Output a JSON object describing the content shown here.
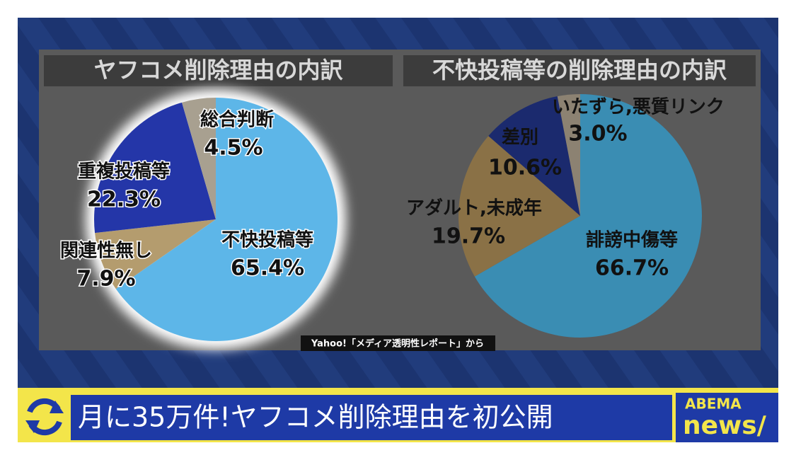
{
  "chart_data": [
    {
      "type": "pie",
      "title": "ヤフコメ削除理由の内訳",
      "categories": [
        "不快投稿等",
        "関連性無し",
        "重複投稿等",
        "総合判断"
      ],
      "values": [
        65.4,
        7.9,
        22.3,
        4.5
      ],
      "value_labels": [
        "65.4%",
        "7.9%",
        "22.3%",
        "4.5%"
      ],
      "colors": [
        "#5db6e8",
        "#b49c6e",
        "#2436a8",
        "#a8a090"
      ]
    },
    {
      "type": "pie",
      "title": "不快投稿等の削除理由の内訳",
      "categories": [
        "誹謗中傷等",
        "アダルト,未成年",
        "差別",
        "いたずら,悪質リンク"
      ],
      "values": [
        66.7,
        19.7,
        10.6,
        3.0
      ],
      "value_labels": [
        "66.7%",
        "19.7%",
        "10.6%",
        "3.0%"
      ],
      "colors": [
        "#3a8db3",
        "#8a7146",
        "#1b2a6e",
        "#8c8272"
      ]
    }
  ],
  "source": "Yahoo!「メディア透明性レポート」から",
  "headline": "月に35万件!ヤフコメ削除理由を初公開",
  "logo": [
    "ABEMA",
    "news/"
  ]
}
